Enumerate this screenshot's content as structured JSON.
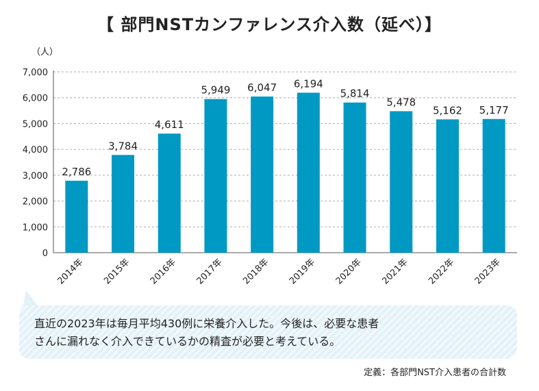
{
  "chart_data": {
    "type": "bar",
    "title": "【 部門NSTカンファレンス介入数（延べ）】",
    "unit_label": "（人）",
    "categories": [
      "2014年",
      "2015年",
      "2016年",
      "2017年",
      "2018年",
      "2019年",
      "2020年",
      "2021年",
      "2022年",
      "2023年"
    ],
    "values": [
      2786,
      3784,
      4611,
      5949,
      6047,
      6194,
      5814,
      5478,
      5162,
      5177
    ],
    "value_labels": [
      "2,786",
      "3,784",
      "4,611",
      "5,949",
      "6,047",
      "6,194",
      "5,814",
      "5,478",
      "5,162",
      "5,177"
    ],
    "yticks": [
      "0",
      "1,000",
      "2,000",
      "3,000",
      "4,000",
      "5,000",
      "6,000",
      "7,000"
    ],
    "ylim": [
      0,
      7000
    ],
    "grid": true,
    "bar_color": "#0099c4",
    "grid_color": "#aaaaaa"
  },
  "note": {
    "line1": "直近の2023年は毎月平均430例に栄養介入した。今後は、必要な患者",
    "line2": "さんに漏れなく介入できているかの精査が必要と考えている。"
  },
  "footnote": "定義：各部門NST介入患者の合計数"
}
